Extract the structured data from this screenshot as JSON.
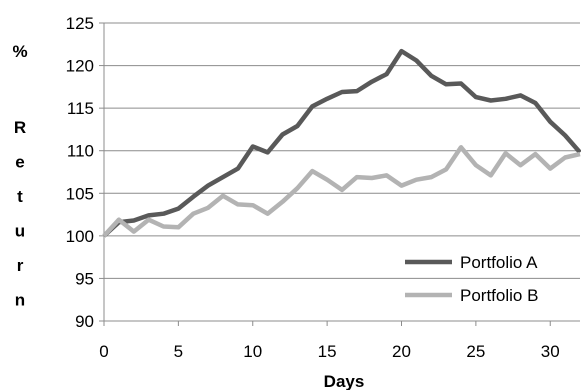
{
  "chart_data": {
    "type": "line",
    "xlabel": "Days",
    "ylabel": "% Return",
    "xlim": [
      0,
      32
    ],
    "ylim": [
      90,
      125
    ],
    "x_ticks": [
      0,
      5,
      10,
      15,
      20,
      25,
      30
    ],
    "y_ticks": [
      90,
      95,
      100,
      105,
      110,
      115,
      120,
      125
    ],
    "grid": "horizontal",
    "legend_position": "bottom-right",
    "x": [
      0,
      1,
      2,
      3,
      4,
      5,
      6,
      7,
      8,
      9,
      10,
      11,
      12,
      13,
      14,
      15,
      16,
      17,
      18,
      19,
      20,
      21,
      22,
      23,
      24,
      25,
      26,
      27,
      28,
      29,
      30,
      31,
      32
    ],
    "series": [
      {
        "name": "Portfolio A",
        "color": "#595959",
        "values": [
          100.0,
          101.6,
          101.8,
          102.4,
          102.6,
          103.2,
          104.6,
          105.9,
          106.9,
          107.9,
          110.5,
          109.8,
          111.9,
          112.9,
          115.2,
          116.1,
          116.9,
          117.0,
          118.1,
          119.0,
          121.7,
          120.6,
          118.8,
          117.8,
          117.9,
          116.3,
          115.9,
          116.1,
          116.5,
          115.6,
          113.4,
          111.8,
          109.8
        ]
      },
      {
        "name": "Portfolio B",
        "color": "#b3b3b3",
        "values": [
          100.0,
          101.9,
          100.5,
          101.9,
          101.1,
          101.0,
          102.6,
          103.3,
          104.7,
          103.7,
          103.6,
          102.6,
          104.0,
          105.6,
          107.6,
          106.6,
          105.4,
          106.9,
          106.8,
          107.1,
          105.9,
          106.6,
          106.9,
          107.8,
          110.4,
          108.3,
          107.1,
          109.7,
          108.3,
          109.6,
          107.9,
          109.2,
          109.6
        ]
      }
    ]
  }
}
